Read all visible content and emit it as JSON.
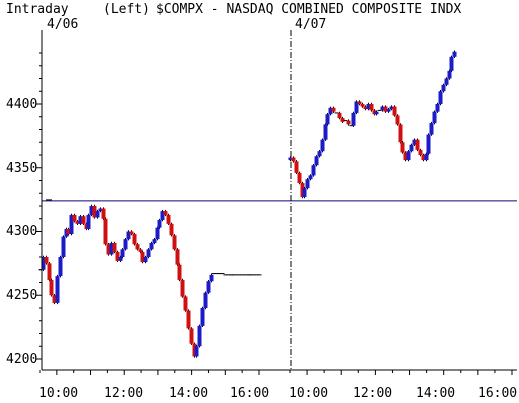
{
  "chart_data": {
    "type": "candlestick",
    "header": {
      "interval": "Intraday",
      "scale_side": "(Left)",
      "symbol_title": "$COMPX - NASDAQ COMBINED COMPOSITE INDX"
    },
    "day_labels": [
      "4/06",
      "4/07"
    ],
    "y_axis": {
      "range": [
        4196,
        4446
      ],
      "ticks": [
        4200,
        4250,
        4300,
        4350,
        4400
      ],
      "tick_labels": [
        "4200",
        "4250",
        "4300",
        "4350",
        "4400"
      ],
      "minor_step": 10,
      "side": "left"
    },
    "x_axis": {
      "session_start": "09:30",
      "session_end": "16:00",
      "sessions": [
        "4/06",
        "4/07"
      ],
      "tick_labels": [
        "10:00",
        "12:00",
        "14:00",
        "16:00",
        "10:00",
        "12:00",
        "14:00",
        "16:00"
      ]
    },
    "previous_close": 4324,
    "colors": {
      "up": "#1b1bc8",
      "down": "#d01010",
      "flat": "#000000",
      "reference": "#0a0a6a",
      "axis": "#000000",
      "session_divider": "#000000"
    },
    "series": [
      {
        "name": "4/06",
        "closes": [
          4270,
          4280,
          4275,
          4262,
          4250,
          4244,
          4265,
          4280,
          4296,
          4302,
          4298,
          4313,
          4308,
          4306,
          4312,
          4306,
          4302,
          4313,
          4320,
          4311,
          4316,
          4318,
          4310,
          4290,
          4282,
          4291,
          4284,
          4277,
          4280,
          4286,
          4294,
          4300,
          4298,
          4290,
          4286,
          4284,
          4276,
          4280,
          4286,
          4291,
          4294,
          4303,
          4309,
          4316,
          4313,
          4306,
          4297,
          4286,
          4274,
          4262,
          4249,
          4238,
          4224,
          4212,
          4202,
          4210,
          4226,
          4240,
          4252,
          4261,
          4266,
          4267,
          4267,
          4267,
          4267,
          4266,
          4266,
          4266,
          4266,
          4266,
          4266,
          4266,
          4266,
          4266,
          4266,
          4266,
          4266,
          4266
        ]
      },
      {
        "name": "4/07",
        "closes": [
          4358,
          4355,
          4346,
          4338,
          4327,
          4334,
          4341,
          4344,
          4352,
          4359,
          4363,
          4372,
          4384,
          4392,
          4397,
          4394,
          4393,
          4389,
          4386,
          4387,
          4384,
          4383,
          4393,
          4402,
          4400,
          4398,
          4396,
          4400,
          4395,
          4392,
          4394,
          4395,
          4398,
          4394,
          4396,
          4398,
          4391,
          4384,
          4370,
          4362,
          4356,
          4363,
          4368,
          4372,
          4364,
          4360,
          4356,
          4361,
          4376,
          4385,
          4394,
          4400,
          4410,
          4415,
          4420,
          4426,
          4437,
          4441
        ]
      }
    ]
  }
}
